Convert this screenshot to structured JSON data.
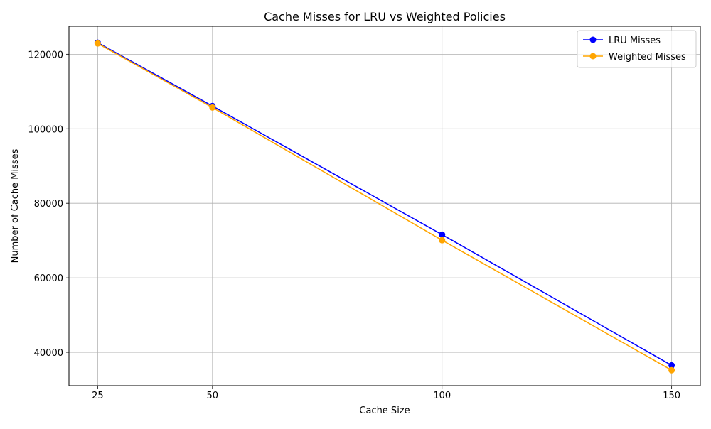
{
  "chart_data": {
    "type": "line",
    "title": "Cache Misses for LRU vs Weighted Policies",
    "xlabel": "Cache Size",
    "ylabel": "Number of Cache Misses",
    "x": [
      25,
      50,
      100,
      150
    ],
    "xticks": [
      25,
      50,
      100,
      150
    ],
    "yticks": [
      40000,
      60000,
      80000,
      100000,
      120000
    ],
    "xlim": [
      18.75,
      156.25
    ],
    "ylim": [
      31050,
      127500
    ],
    "grid": true,
    "legend_position": "top-right",
    "series": [
      {
        "name": "LRU Misses",
        "color": "#0000ff",
        "values": [
          123100,
          106100,
          71600,
          36500
        ]
      },
      {
        "name": "Weighted Misses",
        "color": "#ffa500",
        "values": [
          122900,
          105700,
          70100,
          35200
        ]
      }
    ]
  }
}
